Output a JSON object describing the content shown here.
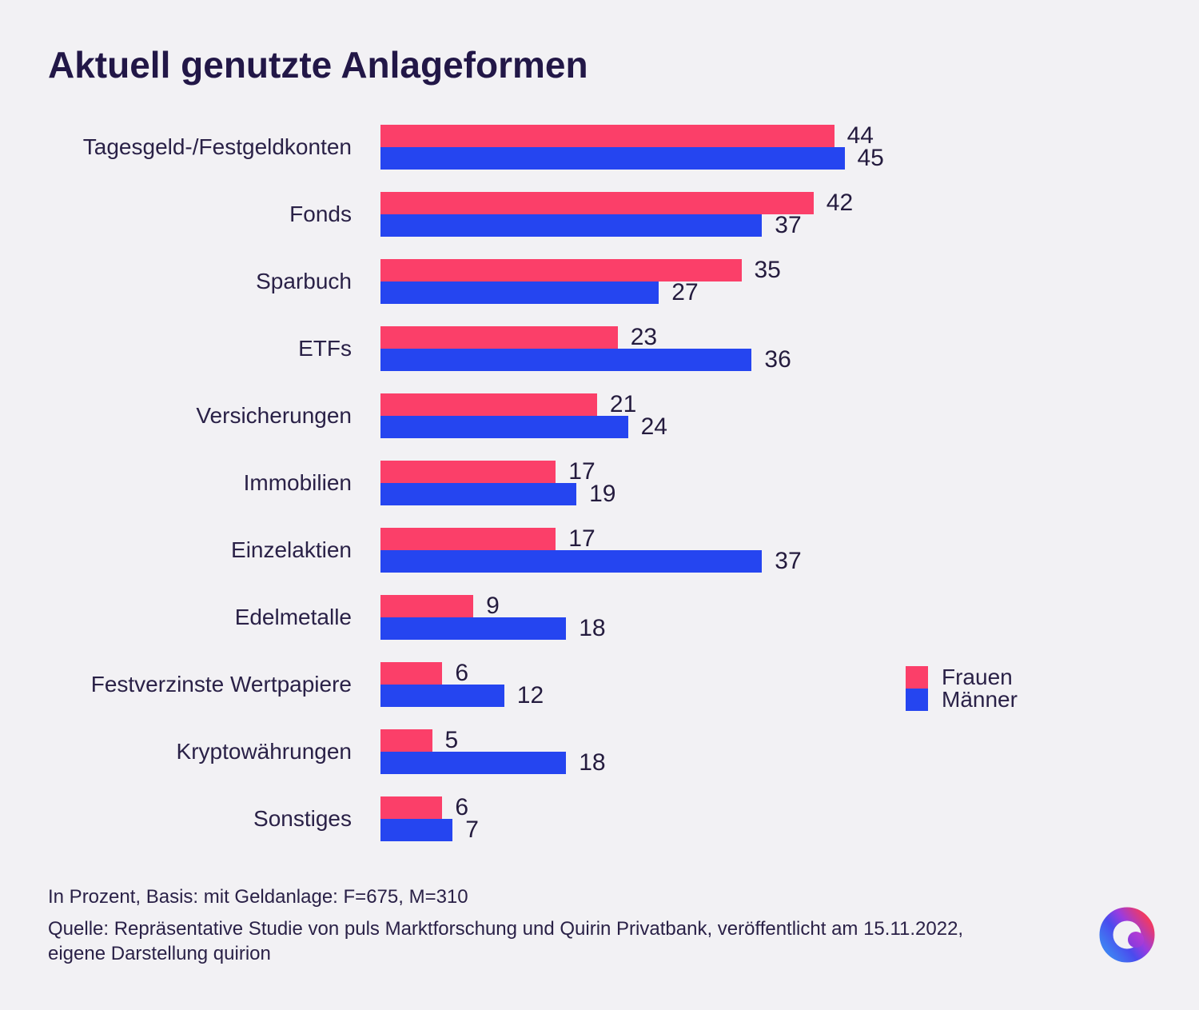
{
  "title": "Aktuell genutzte Anlageformen",
  "colors": {
    "background": "#F2F1F4",
    "text": "#2A2147",
    "title": "#221747",
    "frauen": "#FB3F69",
    "maenner": "#2545F0"
  },
  "chart_data": {
    "type": "bar",
    "orientation": "horizontal",
    "title": "Aktuell genutzte Anlageformen",
    "unit": "percent",
    "categories": [
      "Tagesgeld-/Festgeldkonten",
      "Fonds",
      "Sparbuch",
      "ETFs",
      "Versicherungen",
      "Immobilien",
      "Einzelaktien",
      "Edelmetalle",
      "Festverzinste Wertpapiere",
      "Kryptowährungen",
      "Sonstiges"
    ],
    "series": [
      {
        "name": "Frauen",
        "key": "frauen",
        "color": "#FB3F69",
        "values": [
          44,
          42,
          35,
          23,
          21,
          17,
          17,
          9,
          6,
          5,
          6
        ]
      },
      {
        "name": "Männer",
        "key": "maenner",
        "color": "#2545F0",
        "values": [
          45,
          37,
          27,
          36,
          24,
          19,
          37,
          18,
          12,
          18,
          7
        ]
      }
    ],
    "xlim": [
      0,
      45
    ],
    "value_labels": true,
    "grid": false,
    "legend_position": "right"
  },
  "legend": {
    "items": [
      {
        "label": "Frauen",
        "color": "#FB3F69"
      },
      {
        "label": "Männer",
        "color": "#2545F0"
      }
    ]
  },
  "footer": {
    "basis": "In Prozent, Basis: mit Geldanlage: F=675, M=310",
    "source_line1": "Quelle: Repräsentative Studie von puls Marktforschung und Quirin Privatbank, veröffentlicht am 15.11.2022,",
    "source_line2": "eigene Darstellung quirion"
  },
  "logo": {
    "name": "quirion-logo"
  }
}
